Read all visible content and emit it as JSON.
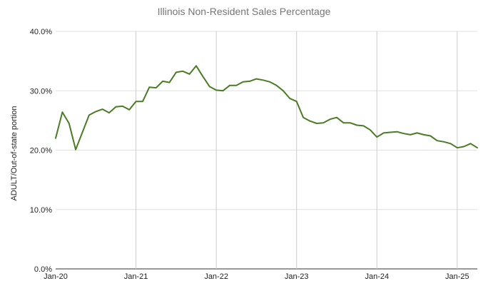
{
  "chart_data": {
    "type": "line",
    "title": "Illinois Non-Resident Sales Percentage",
    "xlabel": "",
    "ylabel": "ADULT/Out-of-state portion",
    "ylim": [
      0,
      40
    ],
    "y_ticks": [
      "0.0%",
      "10.0%",
      "20.0%",
      "30.0%",
      "40.0%"
    ],
    "x_tick_labels": [
      "Jan-20",
      "Jan-21",
      "Jan-22",
      "Jan-23",
      "Jan-24",
      "Jan-25"
    ],
    "grid": true,
    "line_color": "#4a7c23",
    "series": [
      {
        "x": [
          "2020-01",
          "2020-02",
          "2020-03",
          "2020-04",
          "2020-05",
          "2020-06",
          "2020-07",
          "2020-08",
          "2020-09",
          "2020-10",
          "2020-11",
          "2020-12",
          "2021-01",
          "2021-02",
          "2021-03",
          "2021-04",
          "2021-05",
          "2021-06",
          "2021-07",
          "2021-08",
          "2021-09",
          "2021-10",
          "2021-11",
          "2021-12",
          "2022-01",
          "2022-02",
          "2022-03",
          "2022-04",
          "2022-05",
          "2022-06",
          "2022-07",
          "2022-08",
          "2022-09",
          "2022-10",
          "2022-11",
          "2022-12",
          "2023-01",
          "2023-02",
          "2023-03",
          "2023-04",
          "2023-05",
          "2023-06",
          "2023-07",
          "2023-08",
          "2023-09",
          "2023-10",
          "2023-11",
          "2023-12",
          "2024-01",
          "2024-02",
          "2024-03",
          "2024-04",
          "2024-05",
          "2024-06",
          "2024-07",
          "2024-08",
          "2024-09",
          "2024-10",
          "2024-11",
          "2024-12",
          "2025-01",
          "2025-02",
          "2025-03",
          "2025-04"
        ],
        "values": [
          22.0,
          26.4,
          24.5,
          20.1,
          23.0,
          25.9,
          26.5,
          26.9,
          26.3,
          27.3,
          27.4,
          26.8,
          28.2,
          28.2,
          30.6,
          30.5,
          31.6,
          31.4,
          33.1,
          33.3,
          32.8,
          34.2,
          32.4,
          30.7,
          30.1,
          30.0,
          30.9,
          30.9,
          31.5,
          31.6,
          32.0,
          31.8,
          31.5,
          30.9,
          30.0,
          28.7,
          28.2,
          25.5,
          24.9,
          24.5,
          24.6,
          25.2,
          25.5,
          24.6,
          24.6,
          24.2,
          24.1,
          23.4,
          22.2,
          22.9,
          23.0,
          23.1,
          22.8,
          22.6,
          22.9,
          22.6,
          22.4,
          21.6,
          21.4,
          21.1,
          20.4,
          20.6,
          21.1,
          20.4
        ]
      }
    ]
  }
}
